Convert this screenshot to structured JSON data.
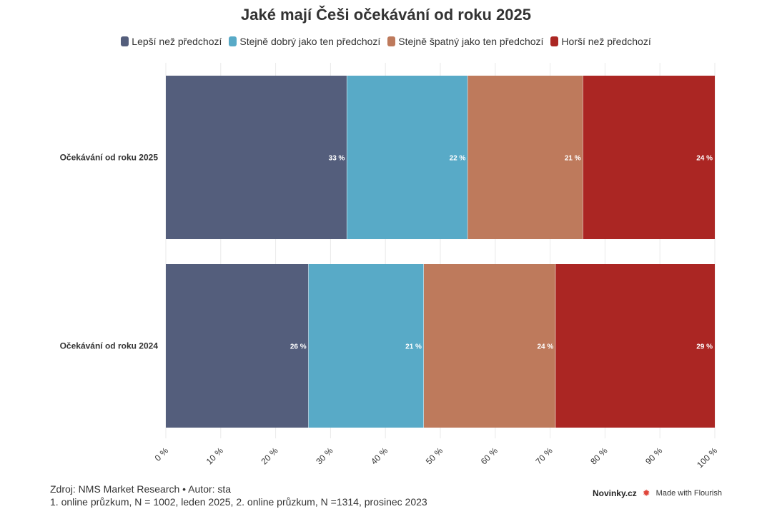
{
  "chart_data": {
    "type": "bar",
    "orientation": "horizontal",
    "stacked": true,
    "title": "Jaké mají Češi očekávání od roku 2025",
    "categories": [
      "Očekávání od roku 2025",
      "Očekávání od roku 2024"
    ],
    "series": [
      {
        "name": "Lepší než předchozí",
        "color": "#545e7c",
        "values": [
          33,
          26
        ]
      },
      {
        "name": "Stejně dobrý jako ten předchozí",
        "color": "#58aac7",
        "values": [
          22,
          21
        ]
      },
      {
        "name": "Stejně špatný jako ten předchozí",
        "color": "#be7a5c",
        "values": [
          21,
          24
        ]
      },
      {
        "name": "Horší než předchozí",
        "color": "#ab2623",
        "values": [
          24,
          29
        ]
      }
    ],
    "value_suffix": " %",
    "xlim": [
      0,
      100
    ],
    "xticks": [
      "0 %",
      "10 %",
      "20 %",
      "30 %",
      "40 %",
      "50 %",
      "60 %",
      "70 %",
      "80 %",
      "90 %",
      "100 %"
    ],
    "grid": true,
    "legend_position": "top"
  },
  "footer": {
    "source_line": "Zdroj: NMS Market Research • Autor: sta",
    "note_line": "1. online průzkum, N = 1002, leden 2025, 2. online průzkum, N =1314, prosinec 2023"
  },
  "brand": {
    "logo_main": "Novinky",
    "logo_suffix": ".cz",
    "flourish": "Made with Flourish"
  }
}
